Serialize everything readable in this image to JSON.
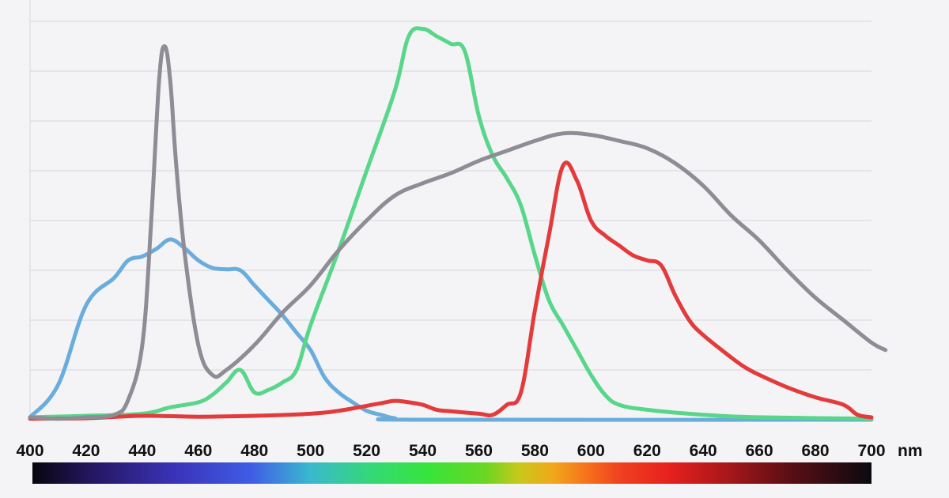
{
  "chart_data": {
    "type": "line",
    "title": "",
    "xlabel": "",
    "ylabel": "",
    "x_unit": "nm",
    "xlim": [
      400,
      700
    ],
    "x_ticks": [
      400,
      420,
      440,
      460,
      480,
      500,
      520,
      540,
      560,
      580,
      600,
      620,
      640,
      660,
      680,
      700
    ],
    "ylim": [
      0,
      8
    ],
    "y_gridlines": [
      1,
      2,
      3,
      4,
      5,
      6,
      7,
      8
    ],
    "grid": true,
    "legend": "none",
    "spectrum_bar": true,
    "colors": {
      "background": "#f4f4f6",
      "grid": "#d6d6dc",
      "tick_label": "#111111"
    },
    "series": [
      {
        "color": "#6aaddc",
        "points": [
          [
            400,
            0.05
          ],
          [
            410,
            0.7
          ],
          [
            420,
            2.3
          ],
          [
            430,
            2.85
          ],
          [
            435,
            3.2
          ],
          [
            440,
            3.28
          ],
          [
            445,
            3.43
          ],
          [
            450,
            3.62
          ],
          [
            455,
            3.45
          ],
          [
            460,
            3.2
          ],
          [
            465,
            3.05
          ],
          [
            470,
            3.02
          ],
          [
            475,
            3.0
          ],
          [
            480,
            2.7
          ],
          [
            485,
            2.4
          ],
          [
            490,
            2.1
          ],
          [
            495,
            1.75
          ],
          [
            500,
            1.4
          ],
          [
            505,
            0.85
          ],
          [
            510,
            0.55
          ],
          [
            515,
            0.35
          ],
          [
            520,
            0.18
          ],
          [
            525,
            0.1
          ],
          [
            530,
            0.03
          ],
          [
            540,
            0.0
          ],
          [
            700,
            0.0
          ]
        ]
      },
      {
        "color": "#58d68a",
        "points": [
          [
            400,
            0.05
          ],
          [
            420,
            0.08
          ],
          [
            440,
            0.12
          ],
          [
            450,
            0.25
          ],
          [
            460,
            0.35
          ],
          [
            465,
            0.5
          ],
          [
            470,
            0.75
          ],
          [
            475,
            1.0
          ],
          [
            480,
            0.55
          ],
          [
            485,
            0.6
          ],
          [
            490,
            0.75
          ],
          [
            495,
            1.0
          ],
          [
            500,
            1.9
          ],
          [
            510,
            3.4
          ],
          [
            520,
            5.0
          ],
          [
            530,
            6.6
          ],
          [
            535,
            7.7
          ],
          [
            540,
            7.85
          ],
          [
            545,
            7.7
          ],
          [
            550,
            7.55
          ],
          [
            555,
            7.4
          ],
          [
            560,
            6.1
          ],
          [
            565,
            5.3
          ],
          [
            570,
            4.85
          ],
          [
            575,
            4.3
          ],
          [
            580,
            3.3
          ],
          [
            585,
            2.4
          ],
          [
            590,
            1.9
          ],
          [
            595,
            1.4
          ],
          [
            600,
            0.9
          ],
          [
            605,
            0.5
          ],
          [
            610,
            0.3
          ],
          [
            620,
            0.2
          ],
          [
            640,
            0.1
          ],
          [
            660,
            0.05
          ],
          [
            700,
            0.02
          ]
        ]
      },
      {
        "color": "#e33b3b",
        "points": [
          [
            400,
            0.02
          ],
          [
            420,
            0.03
          ],
          [
            440,
            0.08
          ],
          [
            460,
            0.06
          ],
          [
            480,
            0.08
          ],
          [
            500,
            0.12
          ],
          [
            510,
            0.18
          ],
          [
            520,
            0.28
          ],
          [
            525,
            0.33
          ],
          [
            530,
            0.38
          ],
          [
            535,
            0.35
          ],
          [
            540,
            0.3
          ],
          [
            545,
            0.2
          ],
          [
            550,
            0.17
          ],
          [
            560,
            0.12
          ],
          [
            565,
            0.1
          ],
          [
            570,
            0.3
          ],
          [
            575,
            0.55
          ],
          [
            580,
            2.2
          ],
          [
            585,
            3.7
          ],
          [
            590,
            5.1
          ],
          [
            595,
            4.8
          ],
          [
            600,
            4.0
          ],
          [
            605,
            3.7
          ],
          [
            610,
            3.5
          ],
          [
            615,
            3.3
          ],
          [
            620,
            3.2
          ],
          [
            625,
            3.1
          ],
          [
            630,
            2.5
          ],
          [
            635,
            2.0
          ],
          [
            640,
            1.7
          ],
          [
            650,
            1.25
          ],
          [
            655,
            1.05
          ],
          [
            660,
            0.9
          ],
          [
            670,
            0.65
          ],
          [
            680,
            0.45
          ],
          [
            690,
            0.3
          ],
          [
            695,
            0.1
          ],
          [
            700,
            0.05
          ]
        ]
      },
      {
        "color": "#8e8d95",
        "points": [
          [
            400,
            0.05
          ],
          [
            410,
            0.02
          ],
          [
            420,
            0.05
          ],
          [
            430,
            0.1
          ],
          [
            435,
            0.4
          ],
          [
            440,
            1.5
          ],
          [
            443,
            3.8
          ],
          [
            446,
            6.8
          ],
          [
            448,
            7.5
          ],
          [
            450,
            6.8
          ],
          [
            452,
            5.2
          ],
          [
            455,
            3.4
          ],
          [
            460,
            1.5
          ],
          [
            465,
            0.9
          ],
          [
            470,
            1.0
          ],
          [
            480,
            1.5
          ],
          [
            490,
            2.15
          ],
          [
            500,
            2.7
          ],
          [
            510,
            3.4
          ],
          [
            520,
            4.0
          ],
          [
            530,
            4.5
          ],
          [
            540,
            4.75
          ],
          [
            550,
            4.95
          ],
          [
            560,
            5.2
          ],
          [
            570,
            5.4
          ],
          [
            580,
            5.6
          ],
          [
            590,
            5.75
          ],
          [
            600,
            5.72
          ],
          [
            610,
            5.6
          ],
          [
            620,
            5.45
          ],
          [
            630,
            5.15
          ],
          [
            640,
            4.7
          ],
          [
            650,
            4.1
          ],
          [
            660,
            3.6
          ],
          [
            670,
            3.0
          ],
          [
            680,
            2.45
          ],
          [
            690,
            2.0
          ],
          [
            700,
            1.55
          ],
          [
            705,
            1.4
          ]
        ]
      }
    ]
  }
}
